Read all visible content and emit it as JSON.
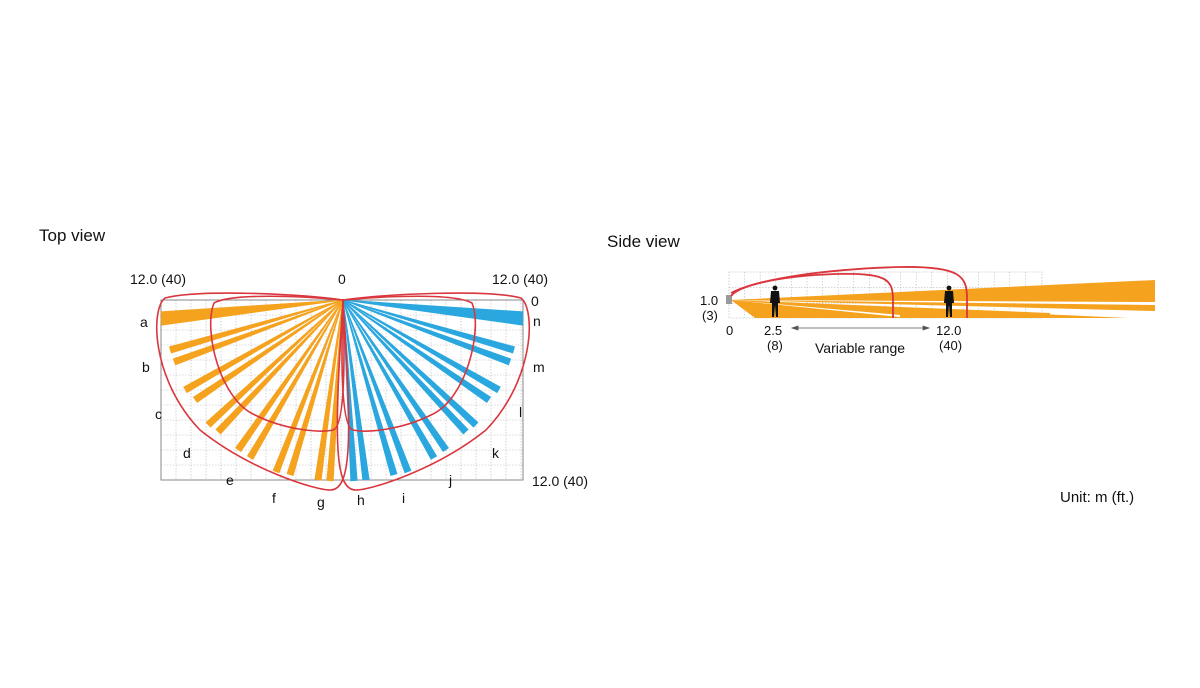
{
  "top_view": {
    "title": "Top view",
    "label_top_left": "12.0 (40)",
    "label_top_center": "0",
    "label_top_right": "12.0 (40)",
    "label_right_top": "0",
    "label_right_bottom": "12.0 (40)",
    "zone_letters": [
      "a",
      "b",
      "c",
      "d",
      "e",
      "f",
      "g",
      "h",
      "i",
      "j",
      "k",
      "l",
      "m",
      "n"
    ],
    "left_beam_color": "#f5a21e",
    "right_beam_color": "#2aa7de",
    "outline_color": "#d9363e",
    "grid_color": "#b7b7b7"
  },
  "side_view": {
    "title": "Side view",
    "height_value": "1.0",
    "height_ft": "(3)",
    "axis_zero": "0",
    "near_value": "2.5",
    "near_ft": "(8)",
    "far_value": "12.0",
    "far_ft": "(40)",
    "range_label": "Variable range",
    "beam_color": "#f5a21e",
    "outline_color": "#d9363e"
  },
  "unit_label": "Unit: m (ft.)"
}
